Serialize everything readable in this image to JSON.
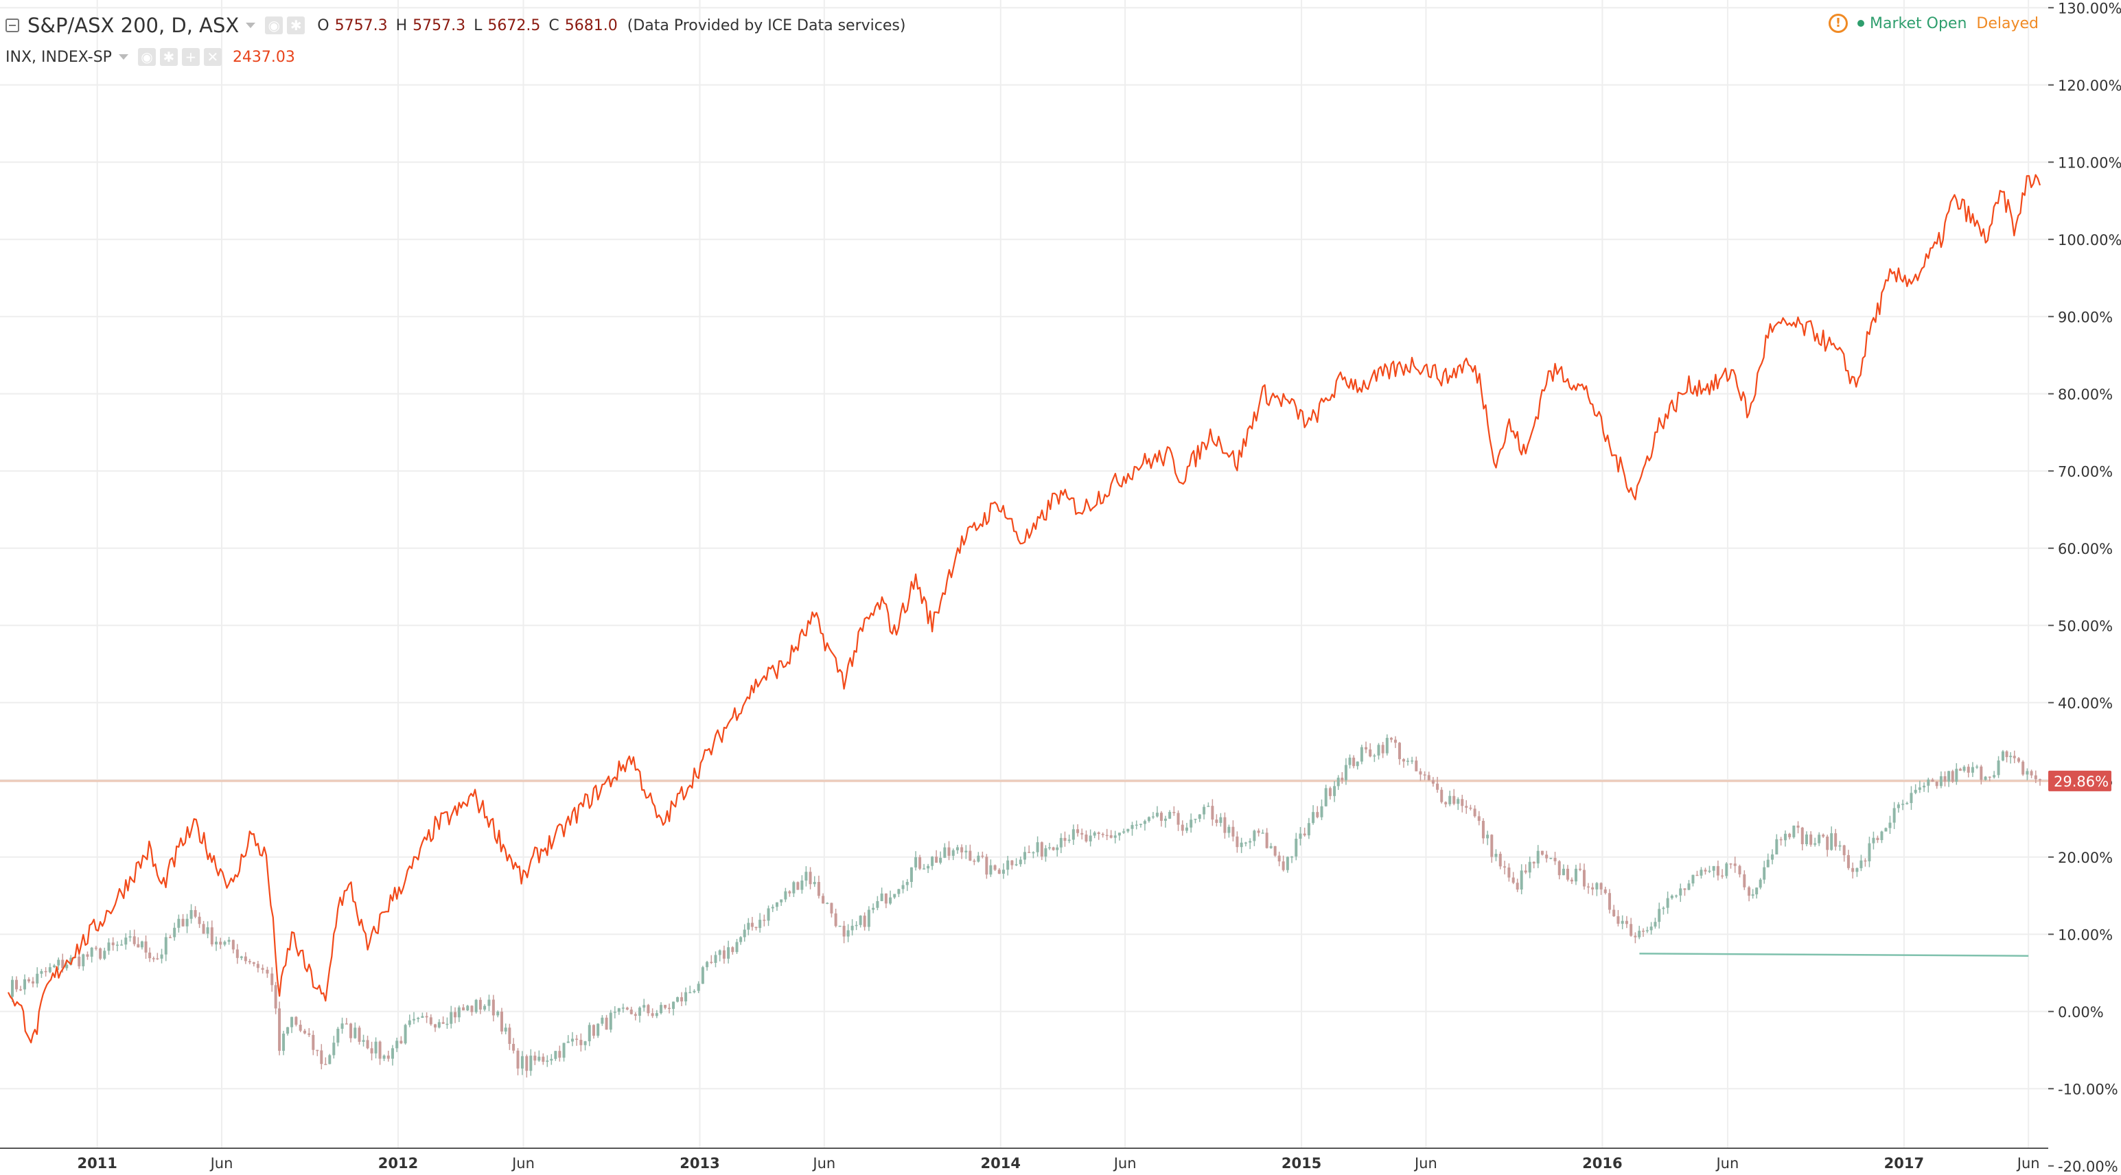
{
  "legend": {
    "main_title": "S&P/ASX 200, D, ASX",
    "ohlc": [
      {
        "key": "O",
        "value": "5757.3"
      },
      {
        "key": "H",
        "value": "5757.3"
      },
      {
        "key": "L",
        "value": "5672.5"
      },
      {
        "key": "C",
        "value": "5681.0"
      }
    ],
    "data_note": "(Data Provided by ICE Data services)",
    "compare_symbol": "INX, INDEX-SP",
    "compare_last": "2437.03"
  },
  "status": {
    "warning_glyph": "!",
    "market_state": "Market Open",
    "feed": "Delayed"
  },
  "colors": {
    "inx_line": "#f24a1a",
    "candle_up": "#8fb7a8",
    "candle_down": "#c99b98",
    "base_line": "#ecc9b7",
    "badge": "#d9534f",
    "trend_line": "#7fc1ad",
    "grid": "#eeeeee"
  },
  "chart_data": {
    "type": "line",
    "ylabel_unit": "%",
    "ylim": [
      -21,
      131
    ],
    "yticks": [
      "130.00%",
      "120.00%",
      "110.00%",
      "100.00%",
      "90.00%",
      "80.00%",
      "70.00%",
      "60.00%",
      "50.00%",
      "40.00%",
      "30.00%",
      "20.00%",
      "10.00%",
      "0.00%",
      "-10.00%",
      "-20.00%"
    ],
    "x_range": [
      "2010-09-15",
      "2017-06-15"
    ],
    "x_ticks": [
      {
        "label": "2011",
        "date": "2011-01-01",
        "bold": true
      },
      {
        "label": "Jun",
        "date": "2011-06-01",
        "bold": false
      },
      {
        "label": "2012",
        "date": "2012-01-01",
        "bold": true
      },
      {
        "label": "Jun",
        "date": "2012-06-01",
        "bold": false
      },
      {
        "label": "2013",
        "date": "2013-01-01",
        "bold": true
      },
      {
        "label": "Jun",
        "date": "2013-06-01",
        "bold": false
      },
      {
        "label": "2014",
        "date": "2014-01-01",
        "bold": true
      },
      {
        "label": "Jun",
        "date": "2014-06-01",
        "bold": false
      },
      {
        "label": "2015",
        "date": "2015-01-01",
        "bold": true
      },
      {
        "label": "Jun",
        "date": "2015-06-01",
        "bold": false
      },
      {
        "label": "2016",
        "date": "2016-01-01",
        "bold": true
      },
      {
        "label": "Jun",
        "date": "2016-06-01",
        "bold": false
      },
      {
        "label": "2017",
        "date": "2017-01-01",
        "bold": true
      },
      {
        "label": "Jun",
        "date": "2017-06-01",
        "bold": false
      }
    ],
    "current_value_label": "29.86%",
    "current_value": 29.86,
    "series": [
      {
        "name": "INX, INDEX-SP",
        "style": "line",
        "points": [
          [
            "2010-09-15",
            3
          ],
          [
            "2010-10-01",
            0
          ],
          [
            "2010-10-15",
            -4
          ],
          [
            "2010-11-01",
            3
          ],
          [
            "2010-11-20",
            6
          ],
          [
            "2010-12-15",
            9
          ],
          [
            "2011-01-15",
            13
          ],
          [
            "2011-02-15",
            18
          ],
          [
            "2011-03-05",
            21
          ],
          [
            "2011-03-20",
            16
          ],
          [
            "2011-04-15",
            22
          ],
          [
            "2011-05-01",
            24
          ],
          [
            "2011-05-20",
            20
          ],
          [
            "2011-06-15",
            16
          ],
          [
            "2011-07-05",
            23
          ],
          [
            "2011-07-25",
            20
          ],
          [
            "2011-08-05",
            8
          ],
          [
            "2011-08-10",
            2
          ],
          [
            "2011-08-25",
            10
          ],
          [
            "2011-09-10",
            6
          ],
          [
            "2011-09-25",
            3
          ],
          [
            "2011-10-05",
            1
          ],
          [
            "2011-10-20",
            14
          ],
          [
            "2011-11-05",
            16
          ],
          [
            "2011-11-25",
            8
          ],
          [
            "2011-12-15",
            13
          ],
          [
            "2012-01-15",
            18
          ],
          [
            "2012-02-15",
            24
          ],
          [
            "2012-03-15",
            26
          ],
          [
            "2012-04-01",
            28
          ],
          [
            "2012-04-20",
            25
          ],
          [
            "2012-05-10",
            21
          ],
          [
            "2012-06-01",
            17
          ],
          [
            "2012-06-15",
            20
          ],
          [
            "2012-07-15",
            23
          ],
          [
            "2012-08-15",
            27
          ],
          [
            "2012-09-15",
            30
          ],
          [
            "2012-10-10",
            33
          ],
          [
            "2012-11-15",
            24
          ],
          [
            "2012-12-15",
            29
          ],
          [
            "2013-01-15",
            34
          ],
          [
            "2013-02-15",
            39
          ],
          [
            "2013-03-15",
            43
          ],
          [
            "2013-04-15",
            45
          ],
          [
            "2013-05-20",
            51
          ],
          [
            "2013-06-15",
            45
          ],
          [
            "2013-06-25",
            43
          ],
          [
            "2013-07-20",
            50
          ],
          [
            "2013-08-10",
            53
          ],
          [
            "2013-08-25",
            49
          ],
          [
            "2013-09-20",
            56
          ],
          [
            "2013-10-10",
            50
          ],
          [
            "2013-11-10",
            60
          ],
          [
            "2013-12-30",
            66
          ],
          [
            "2014-01-25",
            61
          ],
          [
            "2014-02-10",
            62
          ],
          [
            "2014-03-10",
            67
          ],
          [
            "2014-04-10",
            65
          ],
          [
            "2014-05-15",
            68
          ],
          [
            "2014-06-20",
            71
          ],
          [
            "2014-07-25",
            72
          ],
          [
            "2014-08-08",
            69
          ],
          [
            "2014-09-15",
            75
          ],
          [
            "2014-10-15",
            71
          ],
          [
            "2014-11-15",
            80
          ],
          [
            "2014-12-15",
            79
          ],
          [
            "2015-01-10",
            76
          ],
          [
            "2015-02-20",
            82
          ],
          [
            "2015-03-15",
            81
          ],
          [
            "2015-04-20",
            83
          ],
          [
            "2015-05-20",
            84
          ],
          [
            "2015-06-25",
            82
          ],
          [
            "2015-07-20",
            84
          ],
          [
            "2015-08-05",
            82
          ],
          [
            "2015-08-25",
            71
          ],
          [
            "2015-09-10",
            76
          ],
          [
            "2015-09-30",
            72
          ],
          [
            "2015-10-25",
            82
          ],
          [
            "2015-11-10",
            83
          ],
          [
            "2015-12-15",
            80
          ],
          [
            "2016-01-10",
            73
          ],
          [
            "2016-02-10",
            67
          ],
          [
            "2016-03-10",
            76
          ],
          [
            "2016-04-15",
            81
          ],
          [
            "2016-05-15",
            81
          ],
          [
            "2016-06-08",
            83
          ],
          [
            "2016-06-27",
            77
          ],
          [
            "2016-07-20",
            88
          ],
          [
            "2016-08-15",
            89
          ],
          [
            "2016-09-15",
            88
          ],
          [
            "2016-10-15",
            85
          ],
          [
            "2016-11-04",
            81
          ],
          [
            "2016-11-20",
            88
          ],
          [
            "2016-12-15",
            95
          ],
          [
            "2017-01-15",
            95
          ],
          [
            "2017-02-15",
            100
          ],
          [
            "2017-03-01",
            105
          ],
          [
            "2017-03-15",
            104
          ],
          [
            "2017-04-10",
            100
          ],
          [
            "2017-04-30",
            106
          ],
          [
            "2017-05-17",
            101
          ],
          [
            "2017-05-30",
            108
          ],
          [
            "2017-06-15",
            107
          ]
        ]
      },
      {
        "name": "S&P/ASX 200, D, ASX",
        "style": "candles",
        "points": [
          [
            "2010-09-15",
            3
          ],
          [
            "2010-10-15",
            4
          ],
          [
            "2010-11-15",
            6
          ],
          [
            "2010-12-15",
            7
          ],
          [
            "2011-01-15",
            8
          ],
          [
            "2011-02-15",
            9
          ],
          [
            "2011-03-15",
            7
          ],
          [
            "2011-04-15",
            12
          ],
          [
            "2011-04-25",
            13
          ],
          [
            "2011-05-15",
            10
          ],
          [
            "2011-06-15",
            8
          ],
          [
            "2011-07-15",
            6
          ],
          [
            "2011-08-01",
            4
          ],
          [
            "2011-08-10",
            -5
          ],
          [
            "2011-08-25",
            -1
          ],
          [
            "2011-09-15",
            -4
          ],
          [
            "2011-10-05",
            -7
          ],
          [
            "2011-10-20",
            -2
          ],
          [
            "2011-11-15",
            -3
          ],
          [
            "2011-12-15",
            -6
          ],
          [
            "2012-01-15",
            -2
          ],
          [
            "2012-02-15",
            -1
          ],
          [
            "2012-03-15",
            0
          ],
          [
            "2012-04-15",
            1
          ],
          [
            "2012-05-01",
            0
          ],
          [
            "2012-05-20",
            -6
          ],
          [
            "2012-06-05",
            -7
          ],
          [
            "2012-07-15",
            -5
          ],
          [
            "2012-08-15",
            -3
          ],
          [
            "2012-09-15",
            -1
          ],
          [
            "2012-10-15",
            0
          ],
          [
            "2012-11-15",
            0
          ],
          [
            "2012-12-15",
            2
          ],
          [
            "2013-01-15",
            6
          ],
          [
            "2013-02-15",
            9
          ],
          [
            "2013-03-15",
            12
          ],
          [
            "2013-04-15",
            15
          ],
          [
            "2013-05-10",
            18
          ],
          [
            "2013-06-15",
            12
          ],
          [
            "2013-06-25",
            9
          ],
          [
            "2013-07-20",
            12
          ],
          [
            "2013-08-15",
            15
          ],
          [
            "2013-09-20",
            19
          ],
          [
            "2013-10-20",
            20
          ],
          [
            "2013-11-20",
            21
          ],
          [
            "2013-12-20",
            18
          ],
          [
            "2014-01-20",
            20
          ],
          [
            "2014-02-20",
            21
          ],
          [
            "2014-03-20",
            23
          ],
          [
            "2014-04-20",
            22
          ],
          [
            "2014-05-20",
            23
          ],
          [
            "2014-06-20",
            24
          ],
          [
            "2014-07-20",
            25
          ],
          [
            "2014-08-20",
            24
          ],
          [
            "2014-09-10",
            26
          ],
          [
            "2014-09-30",
            24
          ],
          [
            "2014-10-15",
            21
          ],
          [
            "2014-11-10",
            23
          ],
          [
            "2014-12-10",
            19
          ],
          [
            "2015-01-10",
            24
          ],
          [
            "2015-02-10",
            30
          ],
          [
            "2015-03-10",
            33
          ],
          [
            "2015-04-20",
            35
          ],
          [
            "2015-05-10",
            32
          ],
          [
            "2015-06-20",
            28
          ],
          [
            "2015-07-20",
            27
          ],
          [
            "2015-08-25",
            20
          ],
          [
            "2015-09-15",
            16
          ],
          [
            "2015-10-15",
            20
          ],
          [
            "2015-11-15",
            18
          ],
          [
            "2015-12-15",
            17
          ],
          [
            "2016-01-15",
            13
          ],
          [
            "2016-02-10",
            10
          ],
          [
            "2016-03-10",
            13
          ],
          [
            "2016-04-10",
            16
          ],
          [
            "2016-05-10",
            18
          ],
          [
            "2016-06-10",
            19
          ],
          [
            "2016-06-27",
            15
          ],
          [
            "2016-07-20",
            20
          ],
          [
            "2016-08-10",
            24
          ],
          [
            "2016-09-10",
            22
          ],
          [
            "2016-10-10",
            22
          ],
          [
            "2016-11-05",
            18
          ],
          [
            "2016-11-20",
            21
          ],
          [
            "2016-12-15",
            25
          ],
          [
            "2017-01-15",
            28
          ],
          [
            "2017-02-15",
            30
          ],
          [
            "2017-03-15",
            31
          ],
          [
            "2017-04-15",
            31
          ],
          [
            "2017-05-01",
            33
          ],
          [
            "2017-05-15",
            32
          ],
          [
            "2017-06-15",
            30
          ]
        ]
      }
    ],
    "trend_line": {
      "from": [
        "2016-02-15",
        7.5
      ],
      "to": [
        "2017-06-01",
        7.2
      ]
    }
  }
}
